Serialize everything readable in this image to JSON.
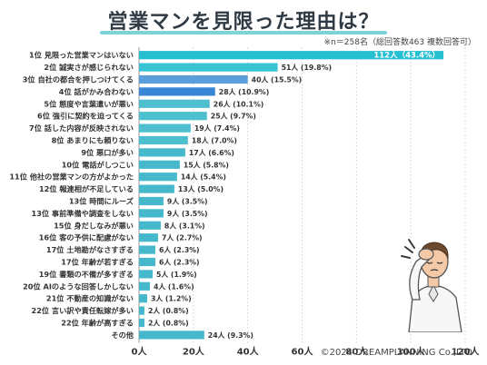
{
  "title": "営業マンを見限った理由は？",
  "note": "※n＝258名（総回答数463 複数回答可）",
  "credit": "©2024 DREAMPLANNING Co.,LTD",
  "colors": {
    "bar": "#3fb6c9",
    "highlight": "#2bbbd0",
    "mid": "#5aa0db",
    "title_line": "#7fd3d6"
  },
  "chart_data": {
    "type": "bar",
    "orientation": "horizontal",
    "categories": [
      "1位 見限った営業マンはいない",
      "2位 誠実さが感じられない",
      "3位 自社の都合を押しつけてくる",
      "4位 話がかみ合わない",
      "5位 態度や言葉遣いが悪い",
      "6位 強引に契約を迫ってくる",
      "7位 話した内容が反映されない",
      "8位 あまりにも頼りない",
      "9位 悪口が多い",
      "10位 電話がしつこい",
      "11位 他社の営業マンの方がよかった",
      "12位 報連相が不足している",
      "13位 時間にルーズ",
      "13位 事前準備や調査をしない",
      "15位 身だしなみが悪い",
      "16位 客の予供に配慮がない",
      "17位 土地勘がなさすぎる",
      "17位 年齢が若すぎる",
      "19位 書類の不備が多すぎる",
      "20位 AIのような回答しかしない",
      "21位 不動産の知識がない",
      "22位 言い訳や責任転嫁が多い",
      "22位 年齢が高すぎる",
      "その他"
    ],
    "values": [
      112,
      51,
      40,
      28,
      26,
      25,
      19,
      18,
      17,
      15,
      14,
      13,
      9,
      9,
      8,
      7,
      6,
      6,
      5,
      4,
      3,
      2,
      2,
      24
    ],
    "labels": [
      "112人（43.4%）",
      "51人 (19.8%)",
      "40人 (15.5%)",
      "28人 (10.9%)",
      "26人 (10.1%)",
      "25人 (9.7%)",
      "19人 (7.4%)",
      "18人 (7.0%)",
      "17人 (6.6%)",
      "15人 (5.8%)",
      "14人 (5.4%)",
      "13人 (5.0%)",
      "9人 (3.5%)",
      "9人 (3.5%)",
      "8人 (3.1%)",
      "7人 (2.7%)",
      "6人 (2.3%)",
      "6人 (2.3%)",
      "5人 (1.9%)",
      "4人 (1.6%)",
      "3人 (1.2%)",
      "2人 (0.8%)",
      "2人 (0.8%)",
      "24人 (9.3%)"
    ],
    "xlim": [
      0,
      120
    ],
    "xticks": [
      0,
      20,
      40,
      60,
      80,
      100,
      120
    ],
    "xtick_labels": [
      "0人",
      "20人",
      "40人",
      "60人",
      "80人",
      "100人",
      "120人"
    ],
    "grid": true
  }
}
